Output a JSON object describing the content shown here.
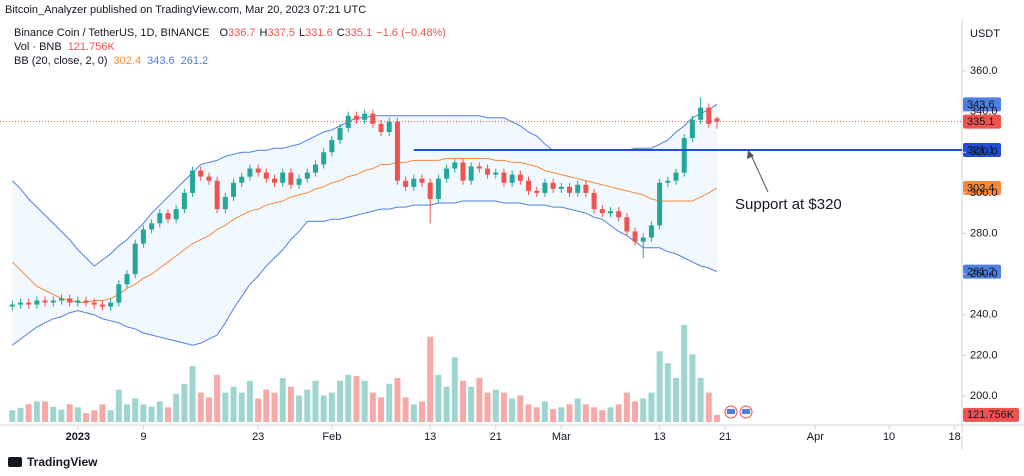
{
  "chart_data": {
    "type": "candlestick",
    "publisher": "Bitcoin_Analyzer published on TradingView.com, Mar 20, 2023 07:21 UTC",
    "title": "Binance Coin / TetherUS, 1D, BINANCE",
    "ohlc_keys": [
      "O",
      "H",
      "L",
      "C"
    ],
    "change_label": "−1.6 (−0.48%)",
    "x": [
      0,
      1,
      2,
      3,
      4,
      5,
      6,
      7,
      8,
      9,
      10,
      11,
      12,
      13,
      14,
      15,
      16,
      17,
      18,
      19,
      20,
      21,
      22,
      23,
      24,
      25,
      26,
      27,
      28,
      29,
      30,
      31,
      32,
      33,
      34,
      35,
      36,
      37,
      38,
      39,
      40,
      41,
      42,
      43,
      44,
      45,
      46,
      47,
      48,
      49,
      50,
      51,
      52,
      53,
      54,
      55,
      56,
      57,
      58,
      59,
      60,
      61,
      62,
      63,
      64,
      65,
      66,
      67,
      68,
      69,
      70,
      71,
      72,
      73,
      74,
      75,
      76,
      77,
      78,
      79,
      80,
      81,
      82,
      83,
      84,
      85,
      86
    ],
    "open": [
      244,
      245,
      246,
      245,
      247,
      246,
      247,
      248,
      246,
      247,
      246,
      245,
      244,
      246,
      255,
      260,
      275,
      282,
      285,
      290,
      287,
      292,
      300,
      311,
      308,
      306,
      292,
      298,
      305,
      308,
      312,
      310,
      307,
      305,
      310,
      304,
      307,
      310,
      314,
      320,
      326,
      332,
      338,
      336,
      339,
      334,
      330,
      335,
      306,
      303,
      307,
      305,
      297,
      307,
      312,
      315,
      306,
      313,
      312,
      309,
      310,
      305,
      309,
      306,
      301,
      300,
      305,
      302,
      303,
      300,
      304,
      300,
      292,
      290,
      291,
      288,
      281,
      276,
      278,
      284,
      305,
      306,
      310,
      327,
      336,
      342,
      336.7
    ],
    "high": [
      247,
      248,
      248,
      249,
      249,
      249,
      250,
      250,
      249,
      249,
      248,
      247,
      248,
      257,
      262,
      277,
      284,
      287,
      292,
      292,
      294,
      302,
      313,
      313,
      310,
      308,
      300,
      307,
      310,
      314,
      314,
      312,
      309,
      312,
      312,
      309,
      312,
      316,
      322,
      328,
      334,
      340,
      340,
      341,
      341,
      336,
      337,
      337,
      308,
      309,
      309,
      307,
      309,
      314,
      317,
      317,
      315,
      315,
      314,
      312,
      312,
      311,
      311,
      308,
      303,
      307,
      307,
      305,
      305,
      306,
      306,
      302,
      294,
      293,
      293,
      290,
      283,
      280,
      286,
      307,
      308,
      312,
      329,
      338,
      347,
      344,
      337.5
    ],
    "low": [
      242,
      243,
      243,
      243,
      244,
      244,
      245,
      244,
      244,
      244,
      243,
      242,
      242,
      244,
      253,
      258,
      273,
      280,
      283,
      285,
      285,
      290,
      298,
      306,
      304,
      290,
      290,
      296,
      303,
      306,
      308,
      305,
      303,
      303,
      302,
      302,
      305,
      308,
      312,
      318,
      324,
      330,
      334,
      334,
      332,
      328,
      328,
      304,
      301,
      301,
      303,
      285,
      295,
      305,
      310,
      304,
      304,
      310,
      307,
      307,
      303,
      303,
      304,
      299,
      298,
      298,
      300,
      300,
      298,
      298,
      298,
      290,
      288,
      288,
      286,
      279,
      274,
      268,
      276,
      282,
      303,
      304,
      308,
      325,
      334,
      332,
      331.6
    ],
    "close": [
      245,
      246,
      245,
      247,
      246,
      247,
      248,
      246,
      247,
      246,
      245,
      244,
      246,
      255,
      260,
      275,
      282,
      285,
      290,
      287,
      292,
      300,
      311,
      308,
      306,
      292,
      298,
      305,
      308,
      312,
      310,
      307,
      305,
      310,
      304,
      307,
      310,
      314,
      320,
      326,
      332,
      338,
      336,
      339,
      334,
      330,
      335,
      306,
      303,
      307,
      305,
      297,
      307,
      312,
      315,
      306,
      313,
      312,
      309,
      310,
      305,
      309,
      306,
      301,
      300,
      305,
      302,
      303,
      300,
      304,
      300,
      292,
      290,
      291,
      288,
      281,
      276,
      278,
      284,
      305,
      306,
      310,
      327,
      336,
      342,
      334,
      335.1
    ],
    "up_color": "#26a69a",
    "down_color": "#ef5350",
    "volume": {
      "name": "Vol · BNB",
      "label": "121.756K",
      "ylim": [
        0,
        1700
      ],
      "up_color": "#9ed6cf",
      "down_color": "#f7a9a7",
      "values": [
        200,
        240,
        300,
        350,
        350,
        260,
        210,
        300,
        250,
        150,
        200,
        300,
        200,
        550,
        300,
        400,
        300,
        260,
        350,
        250,
        480,
        650,
        950,
        500,
        420,
        800,
        500,
        600,
        500,
        700,
        400,
        550,
        500,
        750,
        600,
        450,
        550,
        700,
        450,
        500,
        700,
        800,
        780,
        700,
        500,
        420,
        650,
        750,
        420,
        300,
        350,
        1450,
        800,
        600,
        1100,
        700,
        600,
        750,
        500,
        550,
        500,
        400,
        450,
        300,
        250,
        350,
        220,
        250,
        300,
        400,
        300,
        250,
        200,
        250,
        300,
        500,
        350,
        400,
        500,
        1200,
        1000,
        750,
        1650,
        1150,
        750,
        500,
        121.756
      ]
    },
    "bb": {
      "name": "BB (20, close, 2, 0)",
      "fill": "#2196f3",
      "basis": {
        "color": "#f7883a",
        "values": [
          266,
          262,
          258,
          254,
          252,
          250,
          248,
          247,
          246,
          246,
          247,
          247,
          248,
          250,
          253,
          255,
          258,
          260,
          263,
          266,
          269,
          272,
          275,
          277,
          279,
          282,
          284,
          287,
          289,
          291,
          292,
          294,
          295,
          296,
          298,
          299,
          300,
          302,
          303,
          305,
          306,
          308,
          309,
          311,
          312,
          314,
          314,
          315,
          315,
          316,
          316,
          316,
          316,
          317,
          317,
          317,
          317,
          317,
          317,
          316,
          316,
          315,
          315,
          314,
          313,
          311,
          310,
          309,
          308,
          307,
          306,
          305,
          304,
          303,
          302,
          301,
          300,
          299,
          297,
          296,
          296,
          296,
          296,
          296,
          298,
          300,
          302.4
        ]
      },
      "upper": {
        "color": "#4f7fe0",
        "values": [
          306,
          302,
          297,
          293,
          289,
          285,
          281,
          277,
          272,
          268,
          264,
          267,
          270,
          274,
          277,
          281,
          285,
          290,
          294,
          298,
          302,
          306,
          310,
          314,
          315,
          316,
          318,
          319,
          320,
          320,
          321,
          321,
          322,
          322,
          323,
          324,
          326,
          328,
          330,
          331,
          333,
          335,
          337,
          337,
          338,
          338,
          338,
          338,
          338,
          338,
          338,
          338,
          338,
          338,
          338,
          338,
          338,
          338,
          337,
          337,
          337,
          335,
          333,
          330,
          328,
          324,
          321,
          321,
          321,
          321,
          321,
          321,
          321,
          321,
          321,
          321,
          322,
          322,
          322,
          324,
          326,
          330,
          333,
          337,
          339,
          341,
          343.6
        ]
      },
      "lower": {
        "color": "#4f7fe0",
        "values": [
          225,
          228,
          231,
          234,
          236,
          238,
          239,
          241,
          242,
          241,
          240,
          238,
          237,
          236,
          234,
          233,
          231,
          230,
          229,
          228,
          227,
          226,
          225,
          226,
          228,
          230,
          236,
          243,
          249,
          255,
          259,
          264,
          268,
          272,
          277,
          281,
          286,
          286,
          286,
          287,
          287,
          288,
          289,
          290,
          291,
          292,
          292,
          293,
          293,
          294,
          294,
          294,
          295,
          295,
          295,
          296,
          296,
          296,
          296,
          296,
          295,
          295,
          295,
          294,
          294,
          294,
          293,
          293,
          292,
          291,
          290,
          288,
          287,
          284,
          281,
          279,
          276,
          273,
          273,
          273,
          271,
          270,
          268,
          266,
          264,
          263,
          261.2
        ]
      }
    },
    "hline": {
      "value": 321.1,
      "from_x": 49,
      "color": "#1e4fd6"
    },
    "annotation": {
      "text": "Support at $320",
      "color": "#d93a6a"
    },
    "y_axis_unit": "USDT",
    "ylim": [
      185.7,
      381.2
    ],
    "yticks": [
      {
        "value": 200,
        "label": "200.0"
      },
      {
        "value": 220,
        "label": "220.0"
      },
      {
        "value": 240,
        "label": "240.0"
      },
      {
        "value": 260,
        "label": "260.0"
      },
      {
        "value": 280,
        "label": "280.0"
      },
      {
        "value": 300,
        "label": "300.0"
      },
      {
        "value": 320,
        "label": "320.0"
      },
      {
        "value": 340,
        "label": "340.0"
      },
      {
        "value": 360,
        "label": "360.0"
      }
    ],
    "xlim": [
      -1.5,
      115.9
    ],
    "xticks": [
      {
        "value": 8,
        "label": "2023"
      },
      {
        "value": 16,
        "label": "9"
      },
      {
        "value": 30,
        "label": "23"
      },
      {
        "value": 39,
        "label": "Feb"
      },
      {
        "value": 51,
        "label": "13"
      },
      {
        "value": 59,
        "label": "21"
      },
      {
        "value": 67,
        "label": "Mar"
      },
      {
        "value": 79,
        "label": "13"
      },
      {
        "value": 87,
        "label": "21"
      },
      {
        "value": 98,
        "label": "Apr"
      },
      {
        "value": 107,
        "label": "10"
      },
      {
        "value": 115,
        "label": "18"
      }
    ],
    "grid": false,
    "brand": "TradingView"
  }
}
